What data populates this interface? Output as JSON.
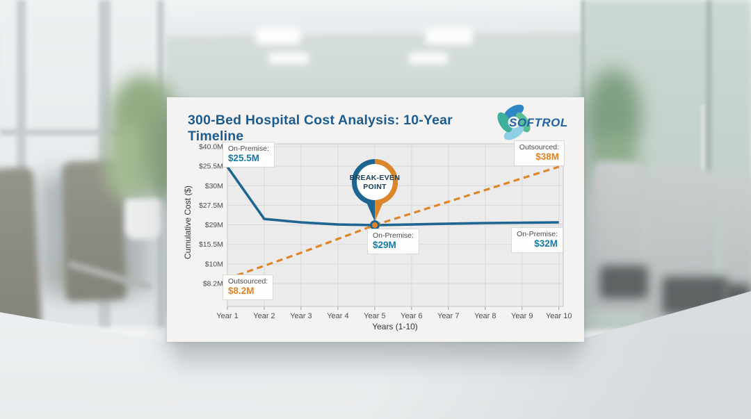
{
  "header": {
    "title": "300-Bed Hospital Cost Analysis: 10-Year Timeline",
    "logo_text": "SOFTROL"
  },
  "chart_data": {
    "type": "line",
    "title": "300-Bed Hospital Cost Analysis: 10-Year Timeline",
    "xlabel": "Years (1-10)",
    "ylabel": "Cumulative Cost ($)",
    "categories": [
      "Year 1",
      "Year 2",
      "Year 3",
      "Year 4",
      "Year 5",
      "Year 6",
      "Year 7",
      "Year 8",
      "Year 9",
      "Year 10"
    ],
    "y_tick_labels": [
      "$40.0M",
      "$25.5M",
      "$30M",
      "$27.5M",
      "$29M",
      "$15.5M",
      "$10M",
      "$8.2M"
    ],
    "grid": true,
    "legend_position": "none",
    "series": [
      {
        "name": "On-Premise",
        "color": "#1f6591",
        "dash": false,
        "labeled_values_musd": {
          "Year 1": 25.5,
          "Year 5": 29,
          "Year 10": 32
        },
        "plot_fractions": [
          0.141,
          0.462,
          0.483,
          0.496,
          0.5,
          0.496,
          0.491,
          0.487,
          0.485,
          0.483
        ]
      },
      {
        "name": "Outsourced",
        "color": "#dd8527",
        "dash": true,
        "labeled_values_musd": {
          "Year 1": 8.2,
          "Year 10": 38
        },
        "plot_fractions": [
          0.829,
          0.75,
          0.67,
          0.585,
          0.5,
          0.428,
          0.356,
          0.284,
          0.212,
          0.141
        ]
      }
    ],
    "break_even": {
      "category": "Year 5",
      "value": "$29M"
    }
  },
  "annotations": {
    "top_left": {
      "label": "On-Premise:",
      "value": "$25.5M"
    },
    "top_right": {
      "label": "Outsourced:",
      "value": "$38M"
    },
    "mid": {
      "label": "On-Premise:",
      "value": "$29M"
    },
    "right": {
      "label": "On-Premise:",
      "value": "$32M"
    },
    "bottom_left": {
      "label": "Outsourced:",
      "value": "$8.2M"
    },
    "badge": {
      "line1": "BREAK-EVEN",
      "line2": "POINT"
    }
  }
}
